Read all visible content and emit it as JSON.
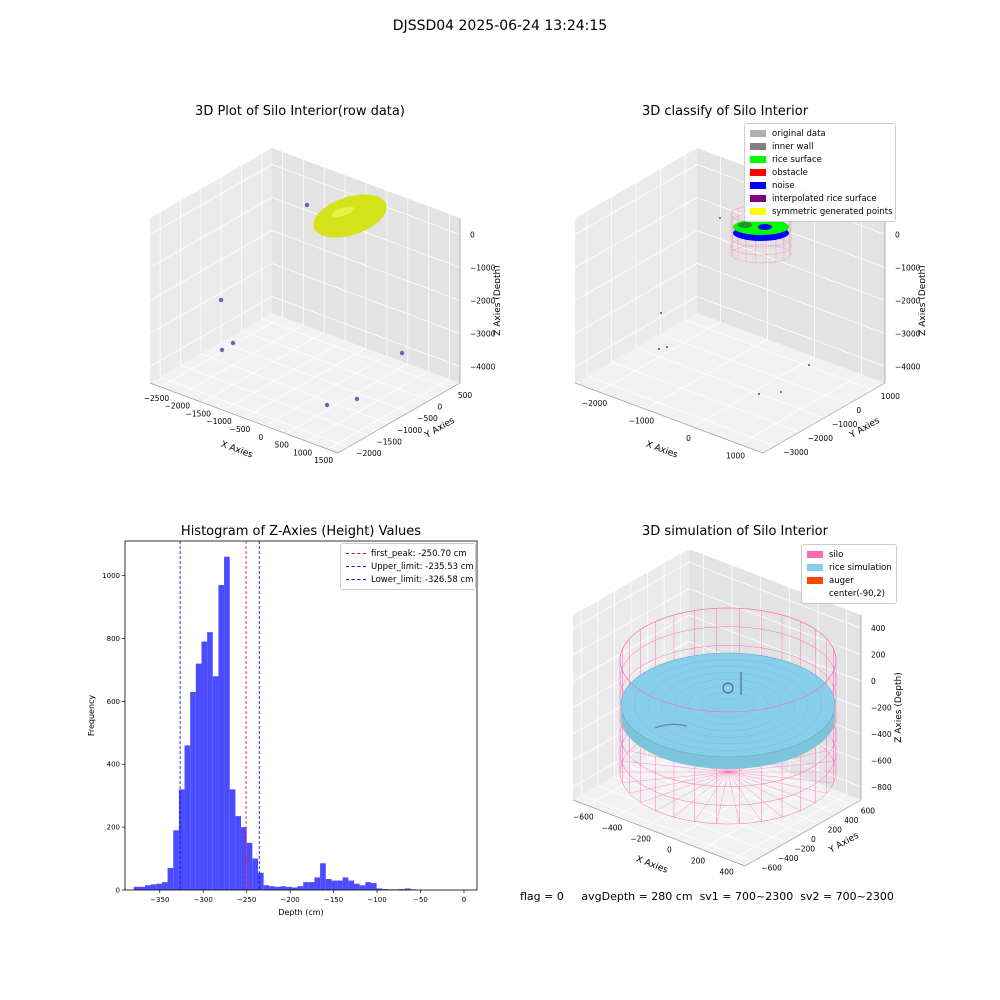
{
  "suptitle": "DJSSD04 2025-06-24 13:24:15",
  "status_line": {
    "flag": "flag = 0",
    "avg_depth": "avgDepth = 280 cm",
    "sv1": "sv1 = 700~2300",
    "sv2": "sv2 = 700~2300"
  },
  "chart_data": [
    {
      "id": "raw",
      "type": "scatter3d",
      "title": "3D Plot of Silo Interior(row data)",
      "xlabel": "X Axies",
      "ylabel": "Y Axies",
      "zlabel": "Z Axies (Depth)",
      "xticks": [
        "−2500",
        "−2000",
        "−1500",
        "−1000",
        "−500",
        "0",
        "500",
        "1000",
        "1500"
      ],
      "yticks": [
        "500",
        "0",
        "−500",
        "−1000",
        "−1500",
        "−2000"
      ],
      "zticks": [
        "0",
        "−1000",
        "−2000",
        "−3000",
        "−4000"
      ],
      "colors": {
        "surface": "#d4e21a",
        "outlier": "#5b4a9a"
      }
    },
    {
      "id": "classify",
      "type": "scatter3d",
      "title": "3D classify of Silo Interior",
      "xlabel": "X Axies",
      "ylabel": "Y Axies",
      "zlabel": "Z Axies (Depth)",
      "xticks": [
        "−2000",
        "−1000",
        "0",
        "1000"
      ],
      "yticks": [
        "1000",
        "0",
        "−1000",
        "−2000",
        "−3000"
      ],
      "zticks": [
        "0",
        "−1000",
        "−2000",
        "−3000",
        "−4000"
      ],
      "legend": [
        {
          "label": "original data",
          "color": "#b0b0b0"
        },
        {
          "label": "inner wall",
          "color": "#808080"
        },
        {
          "label": "rice surface",
          "color": "#00ff00"
        },
        {
          "label": "obstacle",
          "color": "#ff0000"
        },
        {
          "label": "noise",
          "color": "#0000ff"
        },
        {
          "label": "interpolated rice surface",
          "color": "#800080"
        },
        {
          "label": "symmetric generated points",
          "color": "#ffff00"
        }
      ]
    },
    {
      "id": "hist",
      "type": "bar",
      "title": "Histogram of Z-Axies (Height) Values",
      "xlabel": "Depth (cm)",
      "ylabel": "Frequency",
      "xlim": [
        -390,
        15
      ],
      "ylim": [
        0,
        1110
      ],
      "bin_width": 6.5,
      "bin_start": -380,
      "values": [
        10,
        10,
        15,
        18,
        20,
        25,
        70,
        190,
        320,
        460,
        630,
        720,
        790,
        820,
        680,
        970,
        1060,
        320,
        235,
        200,
        150,
        100,
        55,
        15,
        12,
        10,
        12,
        10,
        8,
        12,
        25,
        25,
        40,
        85,
        35,
        30,
        30,
        40,
        30,
        20,
        15,
        25,
        22,
        5,
        3,
        2,
        2,
        3,
        5,
        2
      ],
      "xticks": [
        -350,
        -300,
        -250,
        -200,
        -150,
        -100,
        -50,
        0
      ],
      "yticks": [
        0,
        200,
        400,
        600,
        800,
        1000
      ],
      "vlines": [
        {
          "x": -250.7,
          "color": "#ff0000",
          "label": "first_peak: -250.70 cm"
        },
        {
          "x": -235.53,
          "color": "#0000ff",
          "label": "Upper_limit: -235.53 cm"
        },
        {
          "x": -326.58,
          "color": "#0000ff",
          "label": "Lower_limit: -326.58 cm"
        }
      ],
      "bar_color": "#4b4bff"
    },
    {
      "id": "sim",
      "type": "surface3d",
      "title": "3D simulation of Silo Interior",
      "xlabel": "X Axies",
      "ylabel": "Y Axies",
      "zlabel": "Z Axies (Depth)",
      "xticks": [
        "−600",
        "−400",
        "−200",
        "0",
        "200",
        "400"
      ],
      "yticks": [
        "600",
        "400",
        "200",
        "0",
        "−200",
        "−400",
        "−600"
      ],
      "zticks": [
        "400",
        "200",
        "0",
        "−200",
        "−400",
        "−600",
        "−800"
      ],
      "legend": [
        {
          "label": "silo",
          "color": "#ff69b4"
        },
        {
          "label": "rice simulation",
          "color": "#87ceeb"
        },
        {
          "label": "auger",
          "color": "#ff4500"
        },
        {
          "label": "center(-90,2)",
          "color": ""
        }
      ]
    }
  ]
}
